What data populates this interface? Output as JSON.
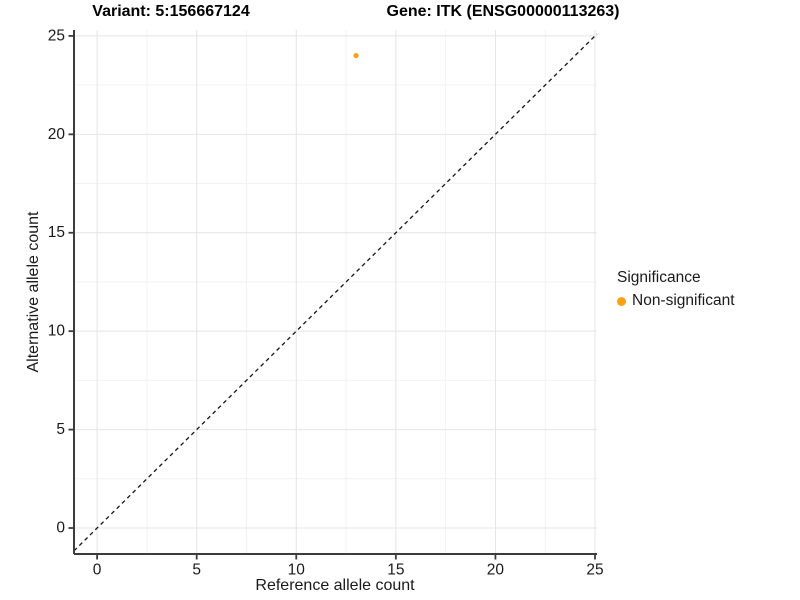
{
  "figure": {
    "title_left": "Variant: 5:156667124",
    "title_right": "Gene: ITK (ENSG00000113263)"
  },
  "chart_data": {
    "type": "scatter",
    "title_left": "Variant: 5:156667124",
    "title_right": "Gene: ITK (ENSG00000113263)",
    "xlabel": "Reference allele count",
    "ylabel": "Alternative allele count",
    "xlim": [
      -1.16,
      25.1
    ],
    "ylim": [
      -1.32,
      25.3
    ],
    "xticks": [
      0,
      5,
      10,
      15,
      20,
      25
    ],
    "yticks": [
      0,
      5,
      10,
      15,
      20,
      25
    ],
    "xticks_minor": [
      2.5,
      7.5,
      12.5,
      17.5,
      22.5
    ],
    "yticks_minor": [
      2.5,
      7.5,
      12.5,
      17.5,
      22.5
    ],
    "grid": "major+minor",
    "legend_position": "right",
    "identity_line": {
      "slope": 1,
      "intercept": 0,
      "style": "dashed"
    },
    "series": [
      {
        "name": "Non-significant",
        "color": "#FFA113",
        "points": [
          {
            "x": 13,
            "y": 24
          }
        ]
      }
    ]
  },
  "legend": {
    "title": "Significance",
    "entries": [
      {
        "label": "Non-significant",
        "color": "#FFA113"
      }
    ]
  },
  "colors": {
    "point_nonsignificant": "#FFA113",
    "grid_major": "#E4E4E4",
    "grid_minor": "#F2F2F2",
    "axis_line": "#3C3C3C",
    "tick_text": "#1A1A1A",
    "identity_line": "#141414",
    "background": "#FFFFFF"
  }
}
